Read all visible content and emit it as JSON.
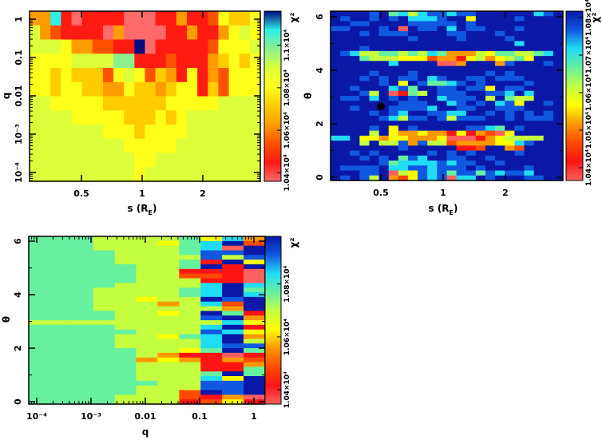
{
  "chart_data": [
    {
      "type": "heatmap",
      "xlabel": "s (R_E)",
      "xlabel_main": "s (R",
      "xlabel_sub": "E",
      "xlabel_close": ")",
      "ylabel": "q",
      "x_scale": "log",
      "y_scale": "log",
      "xlim": [
        0.28,
        3.8
      ],
      "ylim": [
        6e-05,
        1.6
      ],
      "x_ticks": [
        {
          "v": 0.5,
          "label": "0.5"
        },
        {
          "v": 1,
          "label": "1"
        },
        {
          "v": 2,
          "label": "2"
        }
      ],
      "y_ticks": [
        {
          "v": 1,
          "label": "1"
        },
        {
          "v": 0.1,
          "label": "0.1"
        },
        {
          "v": 0.01,
          "label": "0.01"
        },
        {
          "v": 0.001,
          "label": "10⁻³"
        },
        {
          "v": 0.0001,
          "label": "10⁻⁴"
        }
      ],
      "colorbar": {
        "title": "χ²",
        "range": [
          1.036,
          1.116
        ],
        "ticks": [
          {
            "v": 1.04,
            "label": "1.04×10⁴"
          },
          {
            "v": 1.06,
            "label": "1.06×10⁴"
          },
          {
            "v": 1.08,
            "label": "1.08×10⁴"
          },
          {
            "v": 1.1,
            "label": "1.1×10⁴"
          }
        ],
        "palette": [
          "#ff6a6a",
          "#ff1a12",
          "#ff5200",
          "#ff9c00",
          "#ffcc00",
          "#ffff1a",
          "#dcff3a",
          "#8cf08c",
          "#2ef0e8",
          "#000a80"
        ]
      },
      "level_values_x1e4": [
        1.04,
        1.048,
        1.056,
        1.064,
        1.072,
        1.078,
        1.084,
        1.094,
        1.102,
        1.114
      ],
      "cells_levels": [
        "3381011110001131125445",
        "6321111030000113113565",
        "6665332211901111125556",
        "5555666677111211134545",
        "5545444256524315132555",
        "5545544335443455142555",
        "6655555444444555556666",
        "6666555554445456666666",
        "6666666555455556666666",
        "6666666665555566666666",
        "6666666666556666666666",
        "6666666666566666666666"
      ]
    },
    {
      "type": "heatmap",
      "xlabel": "s (R_E)",
      "xlabel_main": "s (R",
      "xlabel_sub": "E",
      "xlabel_close": ")",
      "ylabel": "θ",
      "x_scale": "log",
      "y_scale": "linear",
      "xlim": [
        0.28,
        3.8
      ],
      "ylim": [
        -0.1,
        6.3
      ],
      "x_ticks": [
        {
          "v": 0.5,
          "label": "0.5"
        },
        {
          "v": 1,
          "label": "1"
        },
        {
          "v": 2,
          "label": "2"
        }
      ],
      "y_ticks": [
        {
          "v": 0,
          "label": "0"
        },
        {
          "v": 2,
          "label": "2"
        },
        {
          "v": 4,
          "label": "4"
        },
        {
          "v": 6,
          "label": "6"
        }
      ],
      "marker": {
        "s": 0.5,
        "theta": 2.65,
        "color": "#000000"
      },
      "colorbar": {
        "title": "χ²",
        "range": [
          1.0366,
          1.0817
        ],
        "ticks": [
          {
            "v": 1.04,
            "label": "1.04×10⁴"
          },
          {
            "v": 1.05,
            "label": "1.05×10⁴"
          },
          {
            "v": 1.06,
            "label": "1.06×10⁴"
          },
          {
            "v": 1.07,
            "label": "1.07×10⁴"
          },
          {
            "v": 1.08,
            "label": "1.08×10⁴"
          }
        ],
        "palette": [
          "#ff6060",
          "#ff1414",
          "#ff4a00",
          "#ff9800",
          "#ffff00",
          "#c4ff40",
          "#66f0a0",
          "#20dcf4",
          "#1058e0",
          "#0a18a8"
        ]
      },
      "level_values_x1e4": [
        1.04,
        1.046,
        1.05,
        1.055,
        1.06,
        1.064,
        1.068,
        1.072,
        1.076,
        1.08
      ],
      "cells_levels": [
        "999989675788788999999789",
        "989989897778994999989999",
        "998899998888898999999999",
        "889998909889798899989999",
        "999898889999889998999999",
        "999999998999989999899999",
        "999999999999999999979999",
        "999899999999999999999999",
        "987556656576333546655679",
        "999655544423314534564999",
        "999999799990039993899989",
        "999999999999999999999999",
        "999989998999999989899999",
        "999898988978998898889999",
        "999998949866789899998999",
        "998999786998898849889999",
        "999859016598889988797999",
        "988979898997888959655999",
        "999999988899789897849989",
        "998999888879988998889999",
        "999989879988779989898989",
        "999998758898588899898889",
        "999999999999999999999999",
        "999989498999998876989999",
        "999959433433141320499999",
        "779443443334000134555599",
        "999595583855233334478999",
        "999999989999911299329999",
        "998989999989898999989999",
        "999898968799889989999999",
        "999998677778788998999999",
        "988889778878889899998999",
        "999889054878688687887999",
        "989859324878077989998899"
      ]
    },
    {
      "type": "heatmap",
      "xlabel": "q",
      "ylabel": "θ",
      "x_scale": "log",
      "y_scale": "linear",
      "xlim": [
        6e-05,
        1.6
      ],
      "ylim": [
        -0.1,
        6.3
      ],
      "x_ticks": [
        {
          "v": 0.0001,
          "label": "10⁻⁴"
        },
        {
          "v": 0.001,
          "label": "10⁻³"
        },
        {
          "v": 0.01,
          "label": "0.01"
        },
        {
          "v": 0.1,
          "label": "0.1"
        },
        {
          "v": 1,
          "label": "1"
        }
      ],
      "y_ticks": [
        {
          "v": 0,
          "label": "0"
        },
        {
          "v": 2,
          "label": "2"
        },
        {
          "v": 4,
          "label": "4"
        },
        {
          "v": 6,
          "label": "6"
        }
      ],
      "colorbar": {
        "title": "χ²",
        "range": [
          1.0346,
          1.098
        ],
        "ticks": [
          {
            "v": 1.04,
            "label": "1.04×10⁴"
          },
          {
            "v": 1.06,
            "label": "1.06×10⁴"
          },
          {
            "v": 1.08,
            "label": "1.08×10⁴"
          }
        ],
        "palette": [
          "#ff6060",
          "#ff1414",
          "#ff4a00",
          "#ff9800",
          "#ffff00",
          "#c4ff40",
          "#66f0a0",
          "#20dcf4",
          "#1058e0",
          "#0a18a8"
        ]
      },
      "level_values_x1e4": [
        1.038,
        1.045,
        1.05,
        1.056,
        1.064,
        1.072,
        1.078,
        1.084,
        1.09,
        1.096
      ],
      "cells_levels": [
        "66655556473",
        "66655546792",
        "66655556709",
        "66665556889",
        "66665555858",
        "66665556194",
        "66666556919",
        "66666551110",
        "66666552210",
        "66666555110",
        "66665555797",
        "66655556796",
        "66655556797",
        "66655455989",
        "66655535729",
        "66655555539",
        "66665545961",
        "66665555893",
        "55555555574",
        "66665555791",
        "66666555874",
        "66665546793",
        "66665555795",
        "66665555788",
        "66666554696",
        "66666531101",
        "66666343132",
        "66666555113",
        "66666555116",
        "66666555696",
        "66666555749",
        "66666655889",
        "66666555889",
        "66666552989",
        "66665552130",
        "66665551241"
      ]
    }
  ]
}
